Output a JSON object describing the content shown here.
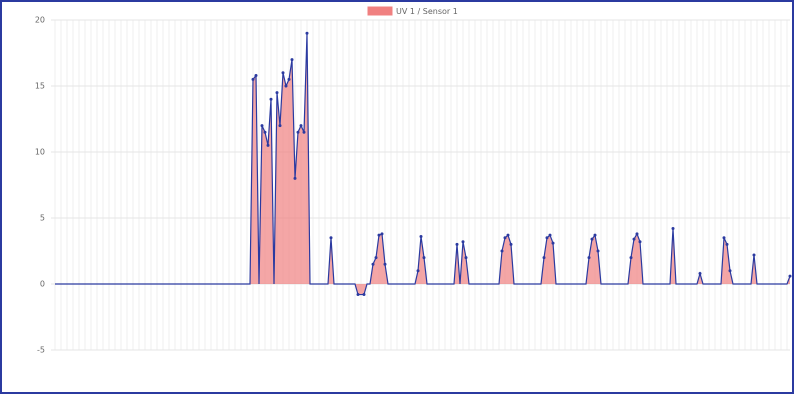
{
  "chart_data": {
    "type": "area",
    "series": [
      {
        "name": "UV 1 / Sensor 1",
        "color": "#f08080",
        "line_color": "#2b3aa0",
        "x": [
          0,
          65,
          66,
          67,
          68,
          69,
          70,
          71,
          72,
          73,
          74,
          75,
          76,
          77,
          78,
          79,
          80,
          81,
          82,
          83,
          84,
          85,
          91,
          92,
          93,
          100,
          101,
          103,
          104,
          105,
          106,
          107,
          108,
          109,
          110,
          111,
          120,
          121,
          122,
          123,
          124,
          133,
          134,
          135,
          136,
          137,
          138,
          148,
          149,
          150,
          151,
          152,
          153,
          162,
          163,
          164,
          165,
          166,
          167,
          177,
          178,
          179,
          180,
          181,
          182,
          191,
          192,
          193,
          194,
          195,
          196,
          205,
          206,
          207,
          214,
          215,
          216,
          222,
          223,
          224,
          225,
          226,
          232,
          233,
          234,
          244,
          245
        ],
        "values": [
          0,
          0,
          15.5,
          15.8,
          0,
          12,
          11.5,
          10.5,
          14,
          0,
          14.5,
          12,
          16,
          15,
          15.5,
          17,
          8,
          11.5,
          12,
          11.5,
          19,
          0,
          0,
          3.5,
          0,
          0,
          -0.8,
          -0.8,
          0,
          0,
          1.5,
          2,
          3.7,
          3.8,
          1.5,
          0,
          0,
          1,
          3.6,
          2,
          0,
          0,
          3.0,
          0,
          3.2,
          2,
          0,
          0,
          2.5,
          3.5,
          3.7,
          3,
          0,
          0,
          2,
          3.5,
          3.7,
          3.1,
          0,
          0,
          2,
          3.4,
          3.7,
          2.5,
          0,
          0,
          2,
          3.4,
          3.8,
          3.2,
          0,
          0,
          4.2,
          0,
          0,
          0.8,
          0,
          0,
          3.5,
          3.0,
          1,
          0,
          0,
          2.2,
          0,
          0,
          0.6
        ]
      }
    ],
    "xlim": [
      0,
      245
    ],
    "ylim": [
      -5,
      20
    ],
    "yticks": [
      -5,
      0,
      5,
      10,
      15,
      20
    ],
    "grid": true
  }
}
